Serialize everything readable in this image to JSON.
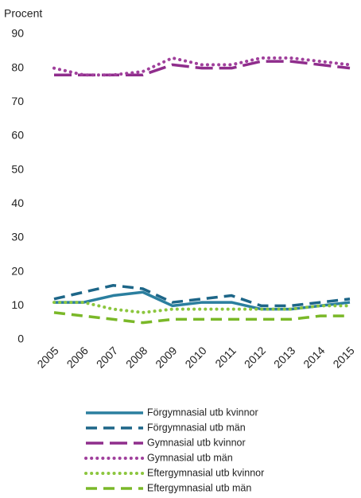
{
  "chart_data": {
    "type": "line",
    "y_label": "Procent",
    "x": [
      2005,
      2006,
      2007,
      2008,
      2009,
      2010,
      2011,
      2012,
      2013,
      2014,
      2015
    ],
    "ylim": [
      0,
      90
    ],
    "yticks": [
      0,
      10,
      20,
      30,
      40,
      50,
      60,
      70,
      80,
      90
    ],
    "xlim": [
      2005,
      2015
    ],
    "xticks": [
      2005,
      2006,
      2007,
      2008,
      2009,
      2010,
      2011,
      2012,
      2013,
      2014,
      2015
    ],
    "series": [
      {
        "name": "Förgymnasial utb kvinnor",
        "color": "#2b7f9f",
        "dash": "solid",
        "values": [
          11,
          11,
          13,
          14,
          10,
          11,
          11,
          9,
          9,
          10,
          11
        ]
      },
      {
        "name": "Förgymnasial utb män",
        "color": "#1d6688",
        "dash": "dashed",
        "values": [
          12,
          14,
          16,
          15,
          11,
          12,
          13,
          10,
          10,
          11,
          12
        ]
      },
      {
        "name": "Gymnasial utb kvinnor",
        "color": "#8f2d8c",
        "dash": "longdash",
        "values": [
          78,
          78,
          78,
          78,
          81,
          80,
          80,
          82,
          82,
          81,
          80
        ]
      },
      {
        "name": "Gymnasial utb män",
        "color": "#a0409c",
        "dash": "dotted",
        "values": [
          80,
          78,
          78,
          79,
          83,
          81,
          81,
          83,
          83,
          82,
          81
        ]
      },
      {
        "name": "Eftergymnasial utb kvinnor",
        "color": "#8cc63e",
        "dash": "dotted",
        "values": [
          11,
          11,
          9,
          8,
          9,
          9,
          9,
          9,
          9,
          10,
          10
        ]
      },
      {
        "name": "Eftergymnasial utb män",
        "color": "#7ab828",
        "dash": "dashed",
        "values": [
          8,
          7,
          6,
          5,
          6,
          6,
          6,
          6,
          6,
          7,
          7
        ]
      }
    ]
  }
}
